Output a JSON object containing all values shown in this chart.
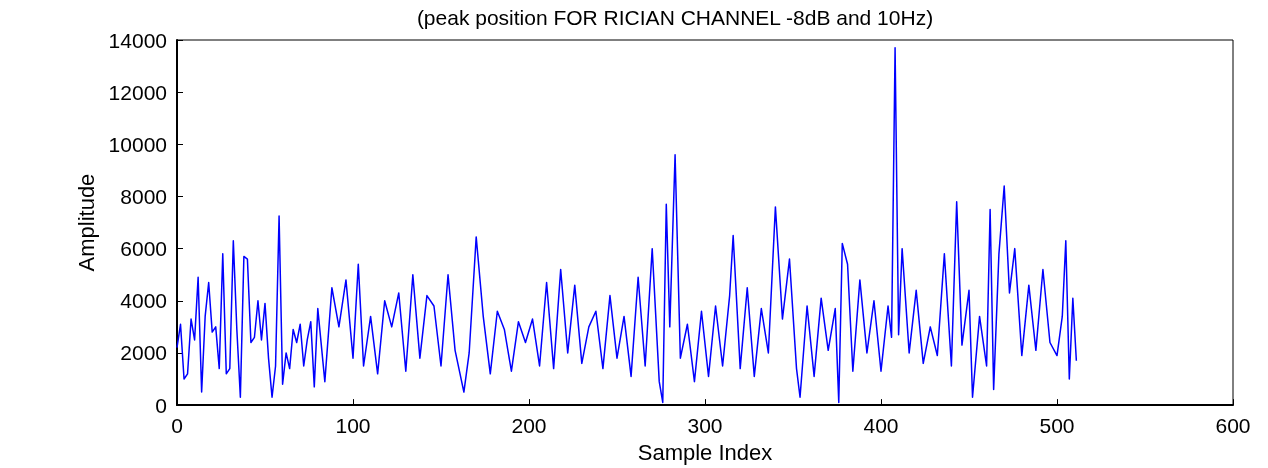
{
  "chart_data": {
    "type": "line",
    "title": "(peak position FOR RICIAN CHANNEL -8dB and 10Hz)",
    "xlabel": "Sample Index",
    "ylabel": "Amplitude",
    "x": [
      0,
      2,
      4,
      6,
      8,
      10,
      12,
      14,
      16,
      18,
      20,
      22,
      24,
      26,
      28,
      30,
      32,
      34,
      36,
      38,
      40,
      42,
      44,
      46,
      48,
      50,
      52,
      54,
      56,
      58,
      60,
      62,
      64,
      66,
      68,
      70,
      72,
      74,
      76,
      78,
      80,
      84,
      88,
      92,
      96,
      100,
      103,
      106,
      110,
      114,
      118,
      122,
      126,
      130,
      134,
      138,
      142,
      146,
      150,
      154,
      158,
      163,
      166,
      170,
      174,
      178,
      182,
      186,
      190,
      194,
      198,
      202,
      206,
      210,
      214,
      218,
      222,
      226,
      230,
      234,
      238,
      242,
      246,
      250,
      254,
      258,
      262,
      266,
      270,
      274,
      276,
      278,
      280,
      283,
      286,
      290,
      294,
      298,
      302,
      306,
      310,
      314,
      316,
      320,
      324,
      328,
      332,
      336,
      340,
      344,
      348,
      352,
      354,
      358,
      362,
      366,
      370,
      374,
      376,
      378,
      381,
      384,
      388,
      392,
      396,
      400,
      404,
      406,
      408,
      410,
      412,
      416,
      420,
      424,
      428,
      432,
      436,
      440,
      443,
      446,
      450,
      452,
      456,
      460,
      462,
      464,
      467,
      470,
      473,
      476,
      480,
      484,
      488,
      492,
      496,
      500,
      503,
      505,
      507,
      509,
      511
    ],
    "series": [
      {
        "color": "#0000ff",
        "values": [
          2200,
          3100,
          1000,
          1200,
          3300,
          2500,
          4900,
          500,
          3400,
          4700,
          2800,
          3000,
          1400,
          5800,
          1200,
          1400,
          6300,
          2900,
          300,
          5700,
          5600,
          2400,
          2600,
          4000,
          2500,
          3900,
          1800,
          300,
          1500,
          7250,
          800,
          2000,
          1400,
          2900,
          2400,
          3100,
          1500,
          2500,
          3200,
          700,
          3700,
          900,
          4500,
          3000,
          4800,
          1800,
          5400,
          1500,
          3400,
          1200,
          4000,
          3000,
          4300,
          1300,
          5000,
          1800,
          4200,
          3800,
          1500,
          5000,
          2100,
          500,
          2000,
          6450,
          3400,
          1200,
          3600,
          2900,
          1300,
          3200,
          2400,
          3300,
          1500,
          4700,
          1400,
          5200,
          2000,
          4600,
          1600,
          3000,
          3600,
          1400,
          4200,
          1800,
          3400,
          1100,
          4900,
          1500,
          6000,
          900,
          100,
          7700,
          3000,
          9600,
          1800,
          3100,
          900,
          3600,
          1100,
          3800,
          1500,
          4200,
          6500,
          1400,
          4500,
          1100,
          3700,
          2000,
          7600,
          3300,
          5600,
          1400,
          300,
          3800,
          1100,
          4100,
          2100,
          3700,
          100,
          6200,
          5400,
          1300,
          4800,
          2000,
          4000,
          1300,
          3800,
          2600,
          13700,
          2700,
          6000,
          2000,
          4400,
          1600,
          3000,
          1900,
          5800,
          1500,
          7800,
          2300,
          4400,
          300,
          3400,
          1500,
          7500,
          600,
          5800,
          8400,
          4300,
          6000,
          1900,
          4600,
          2100,
          5200,
          2400,
          1900,
          3400,
          6300,
          1000,
          4100,
          1700
        ]
      }
    ],
    "xlim": [
      0,
      600
    ],
    "xticks": [
      0,
      100,
      200,
      300,
      400,
      500,
      600
    ],
    "ylim": [
      0,
      14000
    ],
    "yticks": [
      0,
      2000,
      4000,
      6000,
      8000,
      10000,
      12000,
      14000
    ],
    "grid": false,
    "marker": "none",
    "line_style": "solid"
  }
}
